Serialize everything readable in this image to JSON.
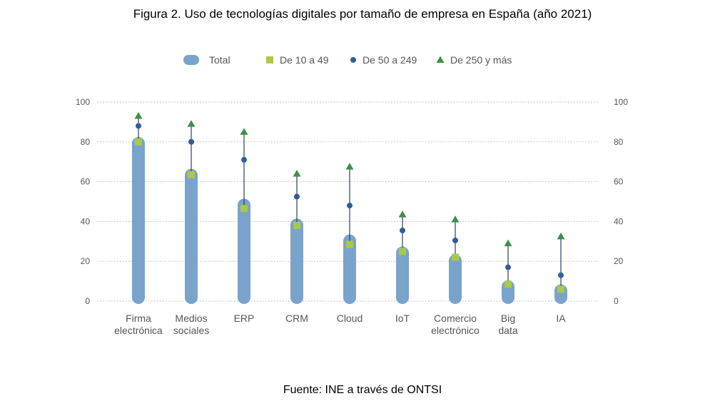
{
  "title": "Figura 2. Uso de tecnologías digitales por tamaño de empresa en España (año 2021)",
  "source": "Fuente: INE a través de ONTSI",
  "colors": {
    "total": "#7aa3cb",
    "small": "#a8c94a",
    "medium": "#2f5d9a",
    "large": "#3f8f4a",
    "axis_text": "#555555",
    "grid": "#b5b5b5",
    "range_line": "#2b3f63"
  },
  "chart_data": {
    "type": "bar",
    "title": "Figura 2. Uso de tecnologías digitales por tamaño de empresa en España (año 2021)",
    "xlabel": "",
    "ylabel": "",
    "ylim": [
      0,
      100
    ],
    "yticks": [
      0,
      20,
      40,
      60,
      80,
      100
    ],
    "grid": true,
    "legend_position": "top",
    "categories": [
      [
        "Firma",
        "electrónica"
      ],
      [
        "Medios",
        "sociales"
      ],
      [
        "ERP"
      ],
      [
        "CRM"
      ],
      [
        "Cloud"
      ],
      [
        "IoT"
      ],
      [
        "Comercio",
        "electrónico"
      ],
      [
        "Big",
        "data"
      ],
      [
        "IA"
      ]
    ],
    "series": [
      {
        "name": "Total",
        "marker": "bar",
        "values": [
          81,
          65,
          50,
          40,
          32,
          26,
          22,
          9,
          7
        ]
      },
      {
        "name": "De 10 a 49",
        "marker": "square",
        "values": [
          80,
          63.5,
          46.5,
          38,
          28.5,
          25,
          22,
          8.5,
          6
        ]
      },
      {
        "name": "De 50 a 249",
        "marker": "circle",
        "values": [
          88,
          80,
          71,
          52.5,
          48,
          35.5,
          30.5,
          17,
          13
        ]
      },
      {
        "name": "De 250 y más",
        "marker": "triangle",
        "values": [
          93,
          89,
          85,
          64,
          67.5,
          43.5,
          41,
          29,
          32.5
        ]
      }
    ]
  }
}
